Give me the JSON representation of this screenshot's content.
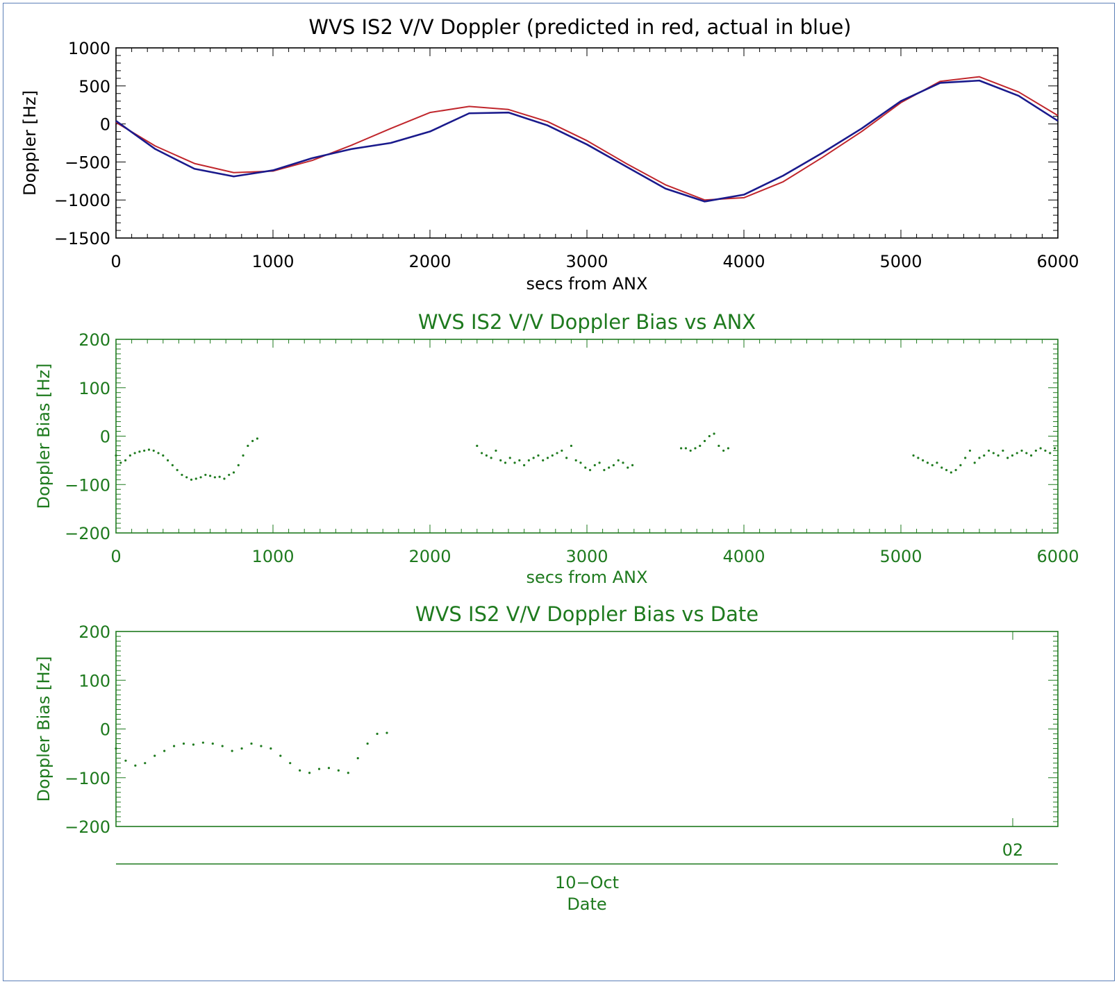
{
  "colors": {
    "top_axis": "#000000",
    "green_axis": "#1e7a1e",
    "predicted": "#c0262c",
    "actual": "#1a1a8c",
    "frame": "#5b7fb7"
  },
  "charts": [
    {
      "title": "WVS IS2 V/V Doppler (predicted in red, actual in blue)",
      "xlabel": "secs from ANX",
      "ylabel": "Doppler [Hz]",
      "xticks": [
        "0",
        "1000",
        "2000",
        "3000",
        "4000",
        "5000",
        "6000"
      ],
      "yticks": [
        "1000",
        "500",
        "0",
        "−500",
        "−1000",
        "−1500"
      ]
    },
    {
      "title": "WVS IS2 V/V Doppler Bias vs ANX",
      "xlabel": "secs from ANX",
      "ylabel": "Doppler Bias [Hz]",
      "xticks": [
        "0",
        "1000",
        "2000",
        "3000",
        "4000",
        "5000",
        "6000"
      ],
      "yticks": [
        "200",
        "100",
        "0",
        "−100",
        "−200"
      ]
    },
    {
      "title": "WVS IS2 V/V Doppler Bias vs Date",
      "ylabel": "Doppler Bias [Hz]",
      "xtick": "02",
      "date_label": "10−Oct",
      "xlabel": "Date",
      "yticks": [
        "200",
        "100",
        "0",
        "−100",
        "−200"
      ]
    }
  ],
  "chart_data": [
    {
      "type": "line",
      "title": "WVS IS2 V/V Doppler (predicted in red, actual in blue)",
      "xlabel": "secs from ANX",
      "ylabel": "Doppler [Hz]",
      "xlim": [
        0,
        6000
      ],
      "ylim": [
        -1500,
        1000
      ],
      "series": [
        {
          "name": "predicted",
          "x": [
            0,
            250,
            500,
            750,
            1000,
            1250,
            1500,
            1750,
            2000,
            2250,
            2500,
            2750,
            3000,
            3250,
            3500,
            3750,
            4000,
            4250,
            4500,
            4750,
            5000,
            5250,
            5500,
            5750,
            6000
          ],
          "y": [
            20,
            -290,
            -520,
            -640,
            -620,
            -480,
            -280,
            -60,
            150,
            230,
            190,
            30,
            -220,
            -520,
            -800,
            -1000,
            -970,
            -760,
            -440,
            -100,
            280,
            560,
            620,
            420,
            110
          ]
        },
        {
          "name": "actual",
          "x": [
            0,
            250,
            500,
            750,
            1000,
            1250,
            1500,
            1750,
            2000,
            2250,
            2500,
            2750,
            3000,
            3250,
            3500,
            3750,
            4000,
            4250,
            4500,
            4750,
            5000,
            5250,
            5500,
            5750,
            6000
          ],
          "y": [
            40,
            -330,
            -590,
            -690,
            -610,
            -450,
            -330,
            -250,
            -100,
            140,
            150,
            -20,
            -270,
            -560,
            -850,
            -1020,
            -930,
            -680,
            -380,
            -60,
            300,
            540,
            570,
            370,
            40
          ]
        }
      ]
    },
    {
      "type": "scatter",
      "title": "WVS IS2 V/V Doppler Bias vs ANX",
      "xlabel": "secs from ANX",
      "ylabel": "Doppler Bias [Hz]",
      "xlim": [
        0,
        6000
      ],
      "ylim": [
        -200,
        200
      ],
      "x": [
        0,
        30,
        60,
        90,
        120,
        150,
        180,
        210,
        240,
        270,
        300,
        330,
        360,
        390,
        420,
        450,
        480,
        510,
        540,
        570,
        600,
        630,
        660,
        690,
        720,
        750,
        780,
        810,
        840,
        870,
        900,
        2300,
        2330,
        2360,
        2390,
        2420,
        2450,
        2480,
        2510,
        2540,
        2570,
        2600,
        2630,
        2660,
        2690,
        2720,
        2750,
        2780,
        2810,
        2840,
        2870,
        2900,
        2930,
        2960,
        2990,
        3020,
        3050,
        3080,
        3110,
        3140,
        3170,
        3200,
        3230,
        3260,
        3290,
        3600,
        3630,
        3660,
        3690,
        3720,
        3750,
        3780,
        3810,
        3840,
        3870,
        3900,
        5080,
        5110,
        5140,
        5170,
        5200,
        5230,
        5260,
        5290,
        5320,
        5350,
        5380,
        5410,
        5440,
        5470,
        5500,
        5530,
        5560,
        5590,
        5620,
        5650,
        5680,
        5710,
        5740,
        5770,
        5800,
        5830,
        5860,
        5890,
        5920,
        5950,
        5980
      ],
      "y": [
        -40,
        -55,
        -50,
        -40,
        -35,
        -32,
        -30,
        -28,
        -30,
        -35,
        -40,
        -50,
        -60,
        -70,
        -80,
        -85,
        -90,
        -88,
        -85,
        -80,
        -82,
        -85,
        -84,
        -88,
        -80,
        -75,
        -60,
        -40,
        -20,
        -10,
        -5,
        -20,
        -35,
        -40,
        -45,
        -30,
        -50,
        -55,
        -45,
        -55,
        -50,
        -60,
        -50,
        -45,
        -40,
        -50,
        -45,
        -40,
        -35,
        -30,
        -45,
        -20,
        -50,
        -55,
        -65,
        -70,
        -60,
        -55,
        -70,
        -65,
        -60,
        -50,
        -55,
        -65,
        -60,
        -25,
        -25,
        -30,
        -25,
        -20,
        -10,
        0,
        5,
        -20,
        -30,
        -25,
        -40,
        -45,
        -50,
        -55,
        -60,
        -55,
        -65,
        -70,
        -75,
        -70,
        -60,
        -45,
        -30,
        -55,
        -45,
        -40,
        -30,
        -35,
        -40,
        -30,
        -45,
        -40,
        -35,
        -30,
        -35,
        -40,
        -30,
        -25,
        -30,
        -35,
        -25
      ],
      "marker": "dot"
    },
    {
      "type": "scatter",
      "title": "WVS IS2 V/V Doppler Bias vs Date",
      "xlabel": "Date",
      "ylabel": "Doppler Bias [Hz]",
      "x_tick_labels": [
        "02"
      ],
      "date": "10-Oct",
      "ylim": [
        -200,
        200
      ],
      "x": [
        "10-Oct 00:00",
        "10-Oct 00:15",
        "10-Oct 00:30",
        "10-Oct 00:45",
        "10-Oct 01:00",
        "10-Oct 01:15",
        "10-Oct 01:30",
        "10-Oct 01:45",
        "10-Oct 02:00",
        "10-Oct 02:15",
        "10-Oct 02:30",
        "10-Oct 02:45",
        "10-Oct 03:00",
        "10-Oct 03:15",
        "10-Oct 03:30",
        "10-Oct 03:45",
        "10-Oct 04:00",
        "10-Oct 04:15",
        "10-Oct 04:30",
        "10-Oct 04:45",
        "10-Oct 05:00",
        "10-Oct 05:15",
        "10-Oct 05:30",
        "10-Oct 05:45",
        "10-Oct 06:00",
        "10-Oct 06:15",
        "10-Oct 06:30",
        "10-Oct 06:45",
        "10-Oct 07:00"
      ],
      "y": [
        -40,
        -65,
        -75,
        -70,
        -55,
        -45,
        -35,
        -30,
        -32,
        -28,
        -30,
        -35,
        -45,
        -40,
        -30,
        -35,
        -40,
        -55,
        -70,
        -85,
        -90,
        -82,
        -80,
        -85,
        -90,
        -60,
        -30,
        -10,
        -8
      ],
      "marker": "dot"
    }
  ]
}
